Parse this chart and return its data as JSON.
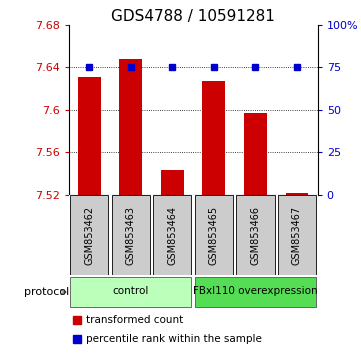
{
  "title": "GDS4788 / 10591281",
  "samples": [
    "GSM853462",
    "GSM853463",
    "GSM853464",
    "GSM853465",
    "GSM853466",
    "GSM853467"
  ],
  "red_values": [
    7.631,
    7.648,
    7.543,
    7.627,
    7.597,
    7.522
  ],
  "blue_values_pct": [
    75,
    75,
    75,
    75,
    75,
    75
  ],
  "bar_bottom": 7.52,
  "ylim_left": [
    7.52,
    7.68
  ],
  "ylim_right": [
    0,
    100
  ],
  "yticks_left": [
    7.52,
    7.56,
    7.6,
    7.64,
    7.68
  ],
  "yticks_right": [
    0,
    25,
    50,
    75,
    100
  ],
  "ytick_labels_right": [
    "0",
    "25",
    "50",
    "75",
    "100%"
  ],
  "ytick_labels_left": [
    "7.52",
    "7.56",
    "7.6",
    "7.64",
    "7.68"
  ],
  "groups": [
    {
      "label": "control",
      "start": 0,
      "end": 3,
      "color": "#bbffbb"
    },
    {
      "label": "FBxl110 overexpression",
      "start": 3,
      "end": 6,
      "color": "#55dd55"
    }
  ],
  "red_color": "#cc0000",
  "blue_color": "#0000cc",
  "bar_width": 0.55,
  "protocol_label": "protocol",
  "legend_red": "transformed count",
  "legend_blue": "percentile rank within the sample",
  "background_color": "#ffffff",
  "plot_bg": "#ffffff",
  "label_box_color": "#cccccc",
  "title_fontsize": 11,
  "tick_fontsize": 8,
  "sample_fontsize": 7
}
